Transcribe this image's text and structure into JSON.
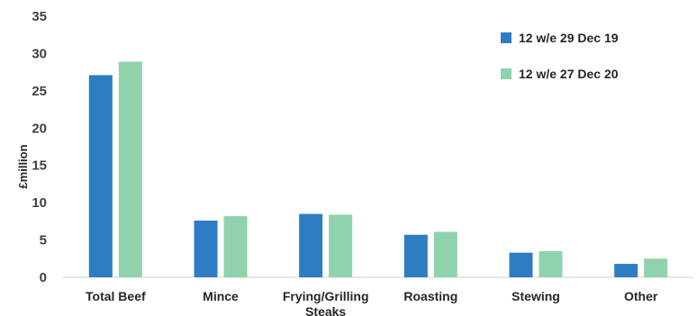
{
  "chart_data": {
    "type": "bar",
    "title": "",
    "xlabel": "",
    "ylabel": "£million",
    "ylim": [
      0,
      35
    ],
    "yticks": [
      0,
      5,
      10,
      15,
      20,
      25,
      30,
      35
    ],
    "grid": false,
    "legend_position": "top-right",
    "categories": [
      "Total Beef",
      "Mince",
      "Frying/Grilling Steaks",
      "Roasting",
      "Stewing",
      "Other"
    ],
    "series": [
      {
        "name": "12 w/e 29 Dec 19",
        "color": "#2e7dc2",
        "values": [
          27.1,
          7.6,
          8.5,
          5.7,
          3.3,
          1.8
        ]
      },
      {
        "name": "12 w/e 27 Dec 20",
        "color": "#8fd3ad",
        "values": [
          28.9,
          8.2,
          8.4,
          6.1,
          3.5,
          2.5
        ]
      }
    ]
  }
}
